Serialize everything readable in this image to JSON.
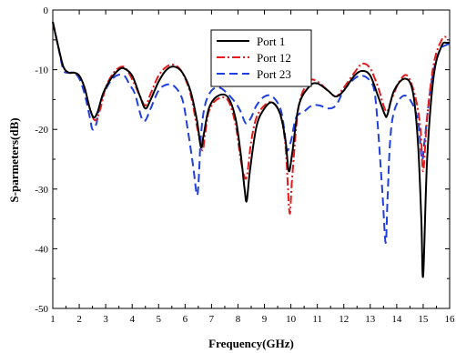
{
  "chart_data": {
    "type": "line",
    "title": "",
    "xlabel": "Frequency(GHz)",
    "ylabel": "S-parmeters(dB)",
    "xlim": [
      1,
      16
    ],
    "ylim": [
      -50,
      0
    ],
    "xticks": [
      1,
      2,
      3,
      4,
      5,
      6,
      7,
      8,
      9,
      10,
      11,
      12,
      13,
      14,
      15,
      16
    ],
    "yticks": [
      0,
      -10,
      -20,
      -30,
      -40,
      -50
    ],
    "grid": false,
    "legend_position": "top-center",
    "series": [
      {
        "name": "Port 1",
        "color": "#000000",
        "dash": "solid",
        "x": [
          1.0,
          1.2,
          1.4,
          1.6,
          1.8,
          2.0,
          2.2,
          2.4,
          2.55,
          2.7,
          2.9,
          3.2,
          3.5,
          3.7,
          4.0,
          4.3,
          4.5,
          4.7,
          5.0,
          5.3,
          5.6,
          5.9,
          6.2,
          6.45,
          6.6,
          6.7,
          6.9,
          7.2,
          7.6,
          7.9,
          8.1,
          8.25,
          8.33,
          8.45,
          8.7,
          9.0,
          9.3,
          9.6,
          9.8,
          9.92,
          10.05,
          10.3,
          10.7,
          11.0,
          11.4,
          11.7,
          12.0,
          12.4,
          12.7,
          13.0,
          13.3,
          13.55,
          13.65,
          13.9,
          14.3,
          14.6,
          14.8,
          14.93,
          15.0,
          15.15,
          15.4,
          15.7,
          15.9,
          16.0
        ],
        "y": [
          -2,
          -6,
          -9.5,
          -10.5,
          -10.5,
          -11,
          -13,
          -16.5,
          -18,
          -17,
          -14,
          -11.5,
          -10,
          -9.8,
          -11,
          -14.5,
          -16.5,
          -15,
          -12,
          -10,
          -9.5,
          -10.5,
          -13.5,
          -18.5,
          -23,
          -21,
          -16.5,
          -14.5,
          -14.5,
          -18,
          -24,
          -30,
          -32,
          -27,
          -19.5,
          -16.5,
          -15.5,
          -17.5,
          -22,
          -27,
          -24,
          -16,
          -12.8,
          -12.3,
          -13.5,
          -14.5,
          -13.5,
          -11,
          -10.2,
          -11,
          -14.5,
          -17.5,
          -17.5,
          -13.5,
          -11.5,
          -13.5,
          -22,
          -35,
          -44.5,
          -25,
          -11,
          -6,
          -5.5,
          -5.5
        ]
      },
      {
        "name": "Port 12",
        "color": "#e41a1c",
        "dash": "dashdot",
        "x": [
          1.0,
          1.2,
          1.4,
          1.6,
          1.8,
          2.0,
          2.2,
          2.4,
          2.6,
          2.8,
          3.0,
          3.3,
          3.6,
          3.8,
          4.1,
          4.3,
          4.5,
          4.7,
          5.0,
          5.3,
          5.6,
          5.9,
          6.2,
          6.45,
          6.65,
          6.75,
          6.9,
          7.2,
          7.6,
          7.9,
          8.1,
          8.25,
          8.35,
          8.5,
          8.7,
          9.0,
          9.3,
          9.6,
          9.8,
          9.95,
          10.05,
          10.3,
          10.7,
          11.0,
          11.4,
          11.7,
          12.0,
          12.4,
          12.7,
          13.0,
          13.3,
          13.6,
          13.8,
          14.1,
          14.4,
          14.7,
          14.9,
          15.0,
          15.15,
          15.4,
          15.7,
          15.9,
          16.0
        ],
        "y": [
          -2,
          -6,
          -9.5,
          -10.5,
          -10.5,
          -11,
          -13,
          -16.5,
          -18.5,
          -16.5,
          -13,
          -10.5,
          -9.5,
          -10,
          -12.5,
          -14.5,
          -16,
          -14,
          -11,
          -9.5,
          -9.2,
          -10.5,
          -14,
          -19.5,
          -23.5,
          -21,
          -17,
          -15,
          -15,
          -19,
          -25,
          -28,
          -27.5,
          -22,
          -18,
          -16,
          -15.5,
          -17.5,
          -23,
          -34,
          -28,
          -16,
          -12,
          -12,
          -13.5,
          -14.5,
          -13,
          -10.5,
          -9,
          -9.8,
          -13,
          -17,
          -15,
          -12,
          -11,
          -14.5,
          -20,
          -27,
          -18,
          -9,
          -5,
          -4.5,
          -4.5
        ]
      },
      {
        "name": "Port 23",
        "color": "#1f3fe0",
        "dash": "dashed",
        "x": [
          1.0,
          1.2,
          1.4,
          1.6,
          1.8,
          2.0,
          2.2,
          2.4,
          2.5,
          2.65,
          2.8,
          3.1,
          3.4,
          3.7,
          3.9,
          4.1,
          4.35,
          4.5,
          4.7,
          5.0,
          5.3,
          5.6,
          5.9,
          6.1,
          6.3,
          6.45,
          6.52,
          6.6,
          6.75,
          7.0,
          7.3,
          7.6,
          7.9,
          8.1,
          8.3,
          8.5,
          8.7,
          9.0,
          9.3,
          9.6,
          9.75,
          9.85,
          10.0,
          10.2,
          10.5,
          10.8,
          11.1,
          11.4,
          11.7,
          12.0,
          12.4,
          12.7,
          13.0,
          13.2,
          13.45,
          13.58,
          13.65,
          13.75,
          13.9,
          14.2,
          14.5,
          14.8,
          14.95,
          15.05,
          15.3,
          15.6,
          15.9,
          16.0
        ],
        "y": [
          -2,
          -6,
          -10,
          -10.5,
          -10.5,
          -11.5,
          -14,
          -18,
          -20,
          -19,
          -15.5,
          -12.5,
          -11,
          -11,
          -12.5,
          -14,
          -18,
          -18.5,
          -16.5,
          -13.5,
          -12.5,
          -12.8,
          -15,
          -20,
          -26,
          -31,
          -28,
          -21,
          -16,
          -13.5,
          -13,
          -14,
          -15.5,
          -17,
          -19,
          -18,
          -16,
          -14.5,
          -14.5,
          -16.5,
          -20,
          -23.5,
          -22,
          -18,
          -17,
          -16,
          -16,
          -16.5,
          -16,
          -13.5,
          -11.5,
          -11,
          -12,
          -15,
          -30,
          -39,
          -32,
          -22,
          -17,
          -14.5,
          -15,
          -18.5,
          -25,
          -22,
          -12.5,
          -7,
          -5.8,
          -5.8
        ]
      }
    ]
  }
}
